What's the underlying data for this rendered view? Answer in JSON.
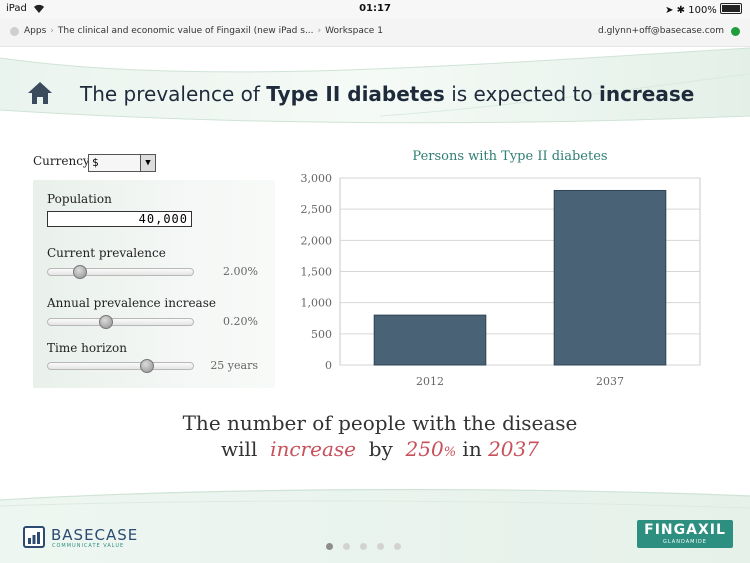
{
  "status_bar": {
    "device": "iPad",
    "time": "01:17",
    "battery": "100%"
  },
  "breadcrumb": {
    "items": [
      "Apps",
      "The clinical and economic value of Fingaxil (new iPad s...",
      "Workspace 1"
    ],
    "user_email": "d.glynn+off@basecase.com"
  },
  "header": {
    "title_part1": "The prevalence of ",
    "title_bold1": "Type II diabetes",
    "title_part2": " is expected to ",
    "title_bold2": "increase"
  },
  "inputs": {
    "currency_label": "Currency",
    "currency_value": "$",
    "population_label": "Population",
    "population_value": "40,000",
    "prevalence_label": "Current prevalence",
    "prevalence_value": "2.00%",
    "prevalence_level": 0.23,
    "increase_label": "Annual prevalence increase",
    "increase_value": "0.20%",
    "increase_level": 0.41,
    "horizon_label": "Time horizon",
    "horizon_value": "25 years",
    "horizon_level": 0.69
  },
  "chart_data": {
    "type": "bar",
    "title": "Persons with Type II diabetes",
    "categories": [
      "2012",
      "2037"
    ],
    "values": [
      800,
      2800
    ],
    "ylim": [
      0,
      3000
    ],
    "yticks": [
      "0",
      "500",
      "1,000",
      "1,500",
      "2,000",
      "2,500",
      "3,000"
    ],
    "grid": true,
    "bar_color": "#4a6276"
  },
  "statement": {
    "line1": "The number of people with the disease",
    "will": "will",
    "increase_word": "increase",
    "by": "by",
    "pct_value": "250",
    "pct_sign": "%",
    "in": "in",
    "year": "2037"
  },
  "footer": {
    "company": "BASECASE",
    "company_tag": "COMMUNICATE VALUE",
    "brand": "FINGAXIL",
    "brand_sub": "GLANDAMIDE",
    "page_count": 5,
    "active_page": 1
  },
  "colors": {
    "accent_teal": "#2c8f7f",
    "highlight_red": "#c8505b",
    "bar": "#4a6276"
  }
}
